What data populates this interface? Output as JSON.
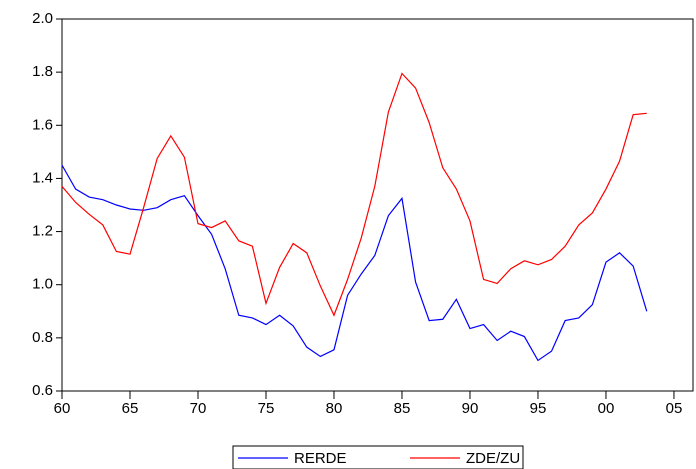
{
  "chart_data": {
    "type": "line",
    "x": [
      1960,
      1961,
      1962,
      1963,
      1964,
      1965,
      1966,
      1967,
      1968,
      1969,
      1970,
      1971,
      1972,
      1973,
      1974,
      1975,
      1976,
      1977,
      1978,
      1979,
      1980,
      1981,
      1982,
      1983,
      1984,
      1985,
      1986,
      1987,
      1988,
      1989,
      1990,
      1991,
      1992,
      1993,
      1994,
      1995,
      1996,
      1997,
      1998,
      1999,
      2000,
      2001,
      2002,
      2003
    ],
    "series": [
      {
        "name": "RERDE",
        "color": "#0000ff",
        "values": [
          1.45,
          1.36,
          1.33,
          1.32,
          1.3,
          1.285,
          1.28,
          1.29,
          1.32,
          1.335,
          1.26,
          1.19,
          1.06,
          0.885,
          0.875,
          0.85,
          0.885,
          0.845,
          0.765,
          0.73,
          0.755,
          0.96,
          1.04,
          1.11,
          1.26,
          1.325,
          1.01,
          0.865,
          0.87,
          0.945,
          0.835,
          0.85,
          0.79,
          0.825,
          0.805,
          0.715,
          0.75,
          0.865,
          0.875,
          0.925,
          1.085,
          1.12,
          1.07,
          0.9
        ]
      },
      {
        "name": "ZDE/ZU",
        "color": "#ff0000",
        "values": [
          1.37,
          1.31,
          1.265,
          1.225,
          1.125,
          1.115,
          1.29,
          1.475,
          1.56,
          1.48,
          1.23,
          1.215,
          1.24,
          1.165,
          1.145,
          0.93,
          1.065,
          1.155,
          1.12,
          0.995,
          0.885,
          1.02,
          1.175,
          1.37,
          1.65,
          1.795,
          1.74,
          1.61,
          1.44,
          1.36,
          1.24,
          1.02,
          1.005,
          1.06,
          1.09,
          1.075,
          1.095,
          1.145,
          1.225,
          1.27,
          1.36,
          1.465,
          1.64,
          1.645
        ]
      }
    ],
    "xlim": [
      1960,
      2006.4
    ],
    "xticks": [
      {
        "value": 1960,
        "label": "60"
      },
      {
        "value": 1965,
        "label": "65"
      },
      {
        "value": 1970,
        "label": "70"
      },
      {
        "value": 1975,
        "label": "75"
      },
      {
        "value": 1980,
        "label": "80"
      },
      {
        "value": 1985,
        "label": "85"
      },
      {
        "value": 1990,
        "label": "90"
      },
      {
        "value": 1995,
        "label": "95"
      },
      {
        "value": 2000,
        "label": "00"
      },
      {
        "value": 2005,
        "label": "05"
      }
    ],
    "ylim": [
      0.6,
      2.0
    ],
    "yticks": [
      {
        "value": 0.6,
        "label": "0.6"
      },
      {
        "value": 0.8,
        "label": "0.8"
      },
      {
        "value": 1.0,
        "label": "1.0"
      },
      {
        "value": 1.2,
        "label": "1.2"
      },
      {
        "value": 1.4,
        "label": "1.4"
      },
      {
        "value": 1.6,
        "label": "1.6"
      },
      {
        "value": 1.8,
        "label": "1.8"
      },
      {
        "value": 2.0,
        "label": "2.0"
      }
    ],
    "legend": "bottom"
  }
}
